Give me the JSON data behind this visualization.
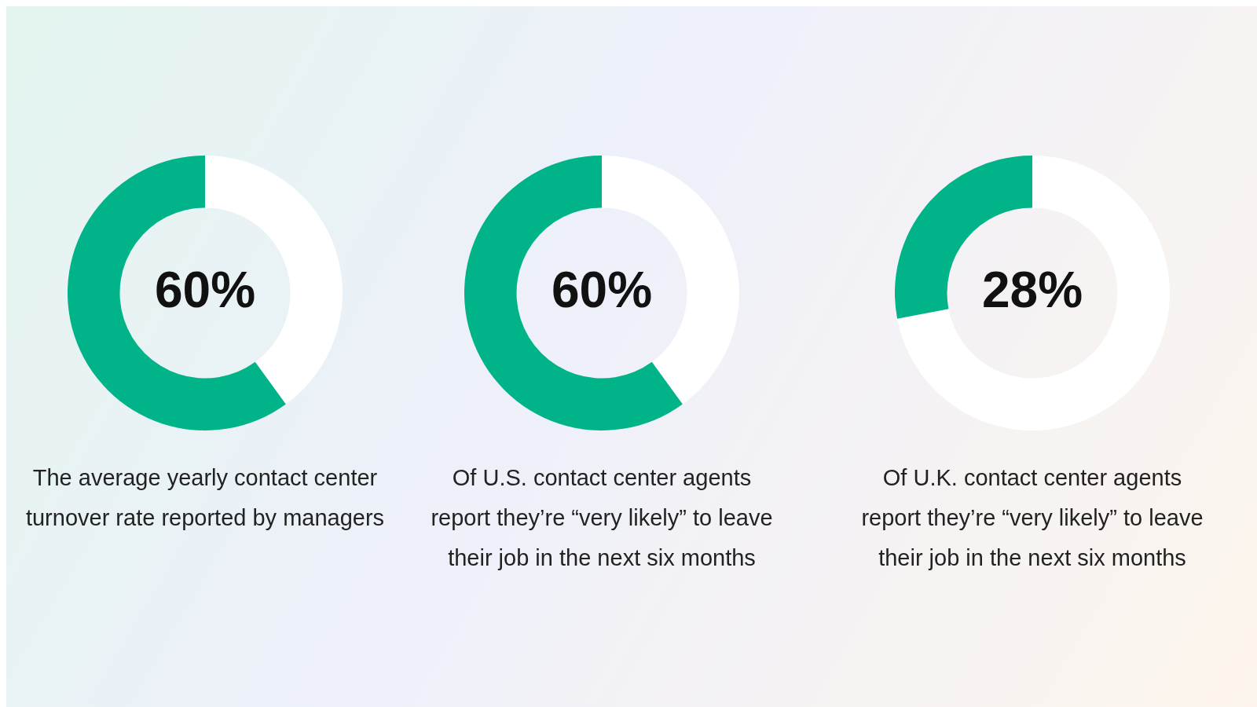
{
  "chart_data": [
    {
      "type": "donut",
      "categories": [
        null,
        null
      ],
      "values": [
        40,
        60
      ],
      "colors": [
        "#ffffff",
        "#00b388"
      ],
      "value_labels": [
        null,
        "60%"
      ],
      "legend": false,
      "title": "The average yearly contact center turnover rate reported by managers"
    },
    {
      "type": "donut",
      "categories": [
        null,
        null
      ],
      "values": [
        40,
        60
      ],
      "colors": [
        "#ffffff",
        "#00b388"
      ],
      "value_labels": [
        null,
        "60%"
      ],
      "legend": false,
      "title": "Of U.S. contact center agents report they’re “very likely” to leave their job in the next six months"
    },
    {
      "type": "donut",
      "categories": [
        null,
        null
      ],
      "values": [
        72,
        28
      ],
      "colors": [
        "#ffffff",
        "#00b388"
      ],
      "value_labels": [
        null,
        "28%"
      ],
      "legend": false,
      "title": "Of U.K. contact center agents report they’re “very likely” to leave their job in the next six months"
    }
  ]
}
